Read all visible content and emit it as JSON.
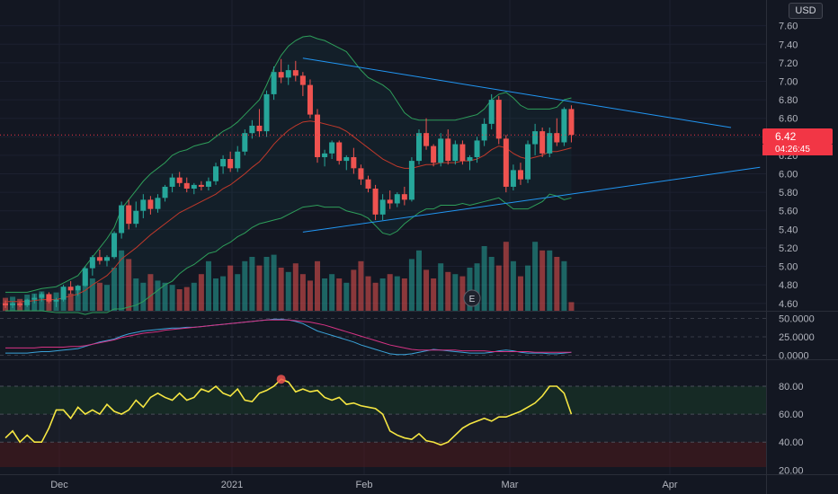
{
  "currency": "USD",
  "colors": {
    "background": "#131722",
    "bull": "#26a69a",
    "bear": "#ef5350",
    "bollinger": "#2e9e5a",
    "basis": "#c0392b",
    "trendline": "#2196f3",
    "rsi": "#f5e642",
    "macd": "#3aa3d9",
    "signal": "#d63384",
    "price_line": "#f23645"
  },
  "last_price": {
    "value": "6.42",
    "countdown": "04:26:45"
  },
  "earnings_marker": "E",
  "chart_data": [
    {
      "type": "candlestick",
      "price_axis": {
        "ticks": [
          "7.60",
          "7.40",
          "7.20",
          "7.00",
          "6.80",
          "6.60",
          "6.40",
          "6.20",
          "6.00",
          "5.80",
          "5.60",
          "5.40",
          "5.20",
          "5.00",
          "4.80",
          "4.60"
        ],
        "ylim": [
          4.52,
          7.82
        ]
      },
      "time_axis": {
        "labels": [
          "Dec",
          "2021",
          "Feb",
          "Mar",
          "Apr"
        ]
      },
      "ohlc": [
        [
          4.6,
          4.63,
          4.55,
          4.58
        ],
        [
          4.58,
          4.62,
          4.55,
          4.6
        ],
        [
          4.6,
          4.62,
          4.56,
          4.58
        ],
        [
          4.58,
          4.65,
          4.56,
          4.64
        ],
        [
          4.64,
          4.7,
          4.6,
          4.66
        ],
        [
          4.66,
          4.72,
          4.62,
          4.7
        ],
        [
          4.7,
          4.72,
          4.6,
          4.62
        ],
        [
          4.62,
          4.66,
          4.56,
          4.64
        ],
        [
          4.64,
          4.8,
          4.62,
          4.78
        ],
        [
          4.78,
          4.84,
          4.7,
          4.74
        ],
        [
          4.74,
          4.8,
          4.68,
          4.79
        ],
        [
          4.79,
          5.0,
          4.78,
          4.98
        ],
        [
          4.98,
          5.12,
          4.9,
          5.1
        ],
        [
          5.1,
          5.18,
          5.02,
          5.06
        ],
        [
          5.06,
          5.12,
          5.0,
          5.1
        ],
        [
          5.1,
          5.38,
          5.08,
          5.36
        ],
        [
          5.36,
          5.7,
          5.3,
          5.66
        ],
        [
          5.66,
          5.72,
          5.4,
          5.46
        ],
        [
          5.46,
          5.7,
          5.42,
          5.6
        ],
        [
          5.6,
          5.78,
          5.52,
          5.72
        ],
        [
          5.72,
          5.76,
          5.56,
          5.62
        ],
        [
          5.62,
          5.78,
          5.58,
          5.74
        ],
        [
          5.74,
          5.88,
          5.7,
          5.86
        ],
        [
          5.86,
          6.0,
          5.8,
          5.96
        ],
        [
          5.96,
          6.02,
          5.86,
          5.9
        ],
        [
          5.9,
          5.96,
          5.8,
          5.84
        ],
        [
          5.84,
          5.9,
          5.78,
          5.88
        ],
        [
          5.88,
          5.92,
          5.82,
          5.86
        ],
        [
          5.86,
          5.96,
          5.82,
          5.92
        ],
        [
          5.92,
          6.12,
          5.88,
          6.08
        ],
        [
          6.08,
          6.2,
          6.0,
          6.16
        ],
        [
          6.16,
          6.24,
          6.02,
          6.06
        ],
        [
          6.06,
          6.3,
          6.02,
          6.24
        ],
        [
          6.24,
          6.48,
          6.2,
          6.44
        ],
        [
          6.44,
          6.58,
          6.38,
          6.52
        ],
        [
          6.52,
          6.7,
          6.4,
          6.46
        ],
        [
          6.46,
          6.9,
          6.4,
          6.86
        ],
        [
          6.86,
          7.16,
          6.8,
          7.1
        ],
        [
          7.1,
          7.24,
          6.98,
          7.04
        ],
        [
          7.04,
          7.18,
          6.96,
          7.12
        ],
        [
          7.12,
          7.22,
          7.0,
          7.06
        ],
        [
          7.06,
          7.1,
          6.84,
          6.96
        ],
        [
          6.96,
          7.02,
          6.6,
          6.64
        ],
        [
          6.64,
          6.7,
          6.12,
          6.18
        ],
        [
          6.18,
          6.26,
          6.08,
          6.22
        ],
        [
          6.22,
          6.36,
          6.16,
          6.34
        ],
        [
          6.34,
          6.36,
          6.1,
          6.14
        ],
        [
          6.14,
          6.2,
          6.04,
          6.18
        ],
        [
          6.18,
          6.28,
          6.0,
          6.06
        ],
        [
          6.06,
          6.1,
          5.88,
          5.94
        ],
        [
          5.94,
          5.98,
          5.8,
          5.84
        ],
        [
          5.84,
          5.88,
          5.5,
          5.56
        ],
        [
          5.56,
          5.78,
          5.5,
          5.72
        ],
        [
          5.72,
          5.82,
          5.62,
          5.68
        ],
        [
          5.68,
          5.8,
          5.64,
          5.78
        ],
        [
          5.78,
          5.86,
          5.66,
          5.72
        ],
        [
          5.72,
          6.18,
          5.7,
          6.14
        ],
        [
          6.14,
          6.48,
          6.1,
          6.44
        ],
        [
          6.44,
          6.6,
          6.26,
          6.3
        ],
        [
          6.3,
          6.32,
          6.08,
          6.12
        ],
        [
          6.12,
          6.44,
          6.08,
          6.38
        ],
        [
          6.38,
          6.48,
          6.1,
          6.14
        ],
        [
          6.14,
          6.36,
          6.1,
          6.32
        ],
        [
          6.32,
          6.36,
          6.1,
          6.14
        ],
        [
          6.14,
          6.2,
          6.04,
          6.18
        ],
        [
          6.18,
          6.4,
          6.12,
          6.36
        ],
        [
          6.36,
          6.6,
          6.3,
          6.54
        ],
        [
          6.54,
          6.86,
          6.48,
          6.8
        ],
        [
          6.8,
          6.84,
          6.32,
          6.38
        ],
        [
          6.38,
          6.42,
          5.8,
          5.86
        ],
        [
          5.86,
          6.1,
          5.82,
          6.04
        ],
        [
          6.04,
          6.12,
          5.88,
          5.94
        ],
        [
          5.94,
          6.36,
          5.9,
          6.32
        ],
        [
          6.32,
          6.54,
          6.2,
          6.46
        ],
        [
          6.46,
          6.5,
          6.18,
          6.22
        ],
        [
          6.22,
          6.5,
          6.18,
          6.44
        ],
        [
          6.44,
          6.6,
          6.3,
          6.34
        ],
        [
          6.34,
          6.72,
          6.3,
          6.7
        ],
        [
          6.7,
          6.74,
          6.34,
          6.42
        ]
      ],
      "volume": [
        1.2,
        1.3,
        1.1,
        1.5,
        1.6,
        1.8,
        1.4,
        1.7,
        2.0,
        1.6,
        1.9,
        3.6,
        3.0,
        2.6,
        2.4,
        4.0,
        5.6,
        4.8,
        3.0,
        2.6,
        3.4,
        2.8,
        2.6,
        2.4,
        2.0,
        2.2,
        2.6,
        3.4,
        4.6,
        3.0,
        3.2,
        4.2,
        3.4,
        4.6,
        5.0,
        4.2,
        5.0,
        5.2,
        4.0,
        3.6,
        4.4,
        3.4,
        2.8,
        4.6,
        3.0,
        3.4,
        3.0,
        2.6,
        3.8,
        4.6,
        3.2,
        2.6,
        3.0,
        3.4,
        3.2,
        3.0,
        4.8,
        5.6,
        3.8,
        3.0,
        4.4,
        3.6,
        3.4,
        3.2,
        4.0,
        4.4,
        6.0,
        5.0,
        4.2,
        6.4,
        4.6,
        3.2,
        4.2,
        6.4,
        5.6,
        5.6,
        5.0,
        4.6,
        0.8
      ],
      "bollinger": {
        "upper": [
          4.72,
          4.72,
          4.72,
          4.72,
          4.74,
          4.76,
          4.77,
          4.78,
          4.82,
          4.86,
          4.9,
          5.0,
          5.1,
          5.2,
          5.3,
          5.42,
          5.62,
          5.72,
          5.82,
          5.92,
          6.0,
          6.06,
          6.12,
          6.2,
          6.24,
          6.26,
          6.3,
          6.32,
          6.34,
          6.4,
          6.46,
          6.5,
          6.56,
          6.64,
          6.72,
          6.8,
          6.96,
          7.14,
          7.28,
          7.38,
          7.44,
          7.48,
          7.49,
          7.46,
          7.44,
          7.4,
          7.36,
          7.32,
          7.22,
          7.12,
          7.04,
          7.0,
          6.96,
          6.9,
          6.78,
          6.66,
          6.6,
          6.58,
          6.58,
          6.58,
          6.58,
          6.58,
          6.58,
          6.6,
          6.62,
          6.64,
          6.7,
          6.8,
          6.86,
          6.88,
          6.82,
          6.74,
          6.7,
          6.7,
          6.7,
          6.7,
          6.72,
          6.8,
          6.82
        ],
        "basis": [
          4.62,
          4.62,
          4.62,
          4.62,
          4.63,
          4.64,
          4.64,
          4.64,
          4.66,
          4.68,
          4.7,
          4.74,
          4.8,
          4.85,
          4.9,
          4.98,
          5.08,
          5.14,
          5.2,
          5.27,
          5.34,
          5.4,
          5.46,
          5.52,
          5.58,
          5.62,
          5.66,
          5.7,
          5.74,
          5.78,
          5.84,
          5.88,
          5.94,
          6.0,
          6.07,
          6.13,
          6.22,
          6.32,
          6.4,
          6.47,
          6.52,
          6.56,
          6.57,
          6.56,
          6.54,
          6.52,
          6.5,
          6.46,
          6.4,
          6.34,
          6.28,
          6.22,
          6.16,
          6.12,
          6.08,
          6.06,
          6.06,
          6.08,
          6.1,
          6.1,
          6.12,
          6.12,
          6.12,
          6.14,
          6.14,
          6.16,
          6.2,
          6.26,
          6.3,
          6.28,
          6.22,
          6.18,
          6.16,
          6.18,
          6.2,
          6.24,
          6.24,
          6.26,
          6.28
        ],
        "lower": [
          4.52,
          4.52,
          4.52,
          4.52,
          4.52,
          4.52,
          4.51,
          4.5,
          4.5,
          4.5,
          4.5,
          4.48,
          4.5,
          4.5,
          4.5,
          4.54,
          4.54,
          4.56,
          4.58,
          4.62,
          4.68,
          4.74,
          4.8,
          4.84,
          4.92,
          4.98,
          5.02,
          5.08,
          5.14,
          5.16,
          5.22,
          5.26,
          5.32,
          5.36,
          5.42,
          5.46,
          5.48,
          5.5,
          5.52,
          5.56,
          5.6,
          5.64,
          5.65,
          5.66,
          5.64,
          5.64,
          5.64,
          5.6,
          5.58,
          5.56,
          5.52,
          5.44,
          5.36,
          5.34,
          5.38,
          5.46,
          5.52,
          5.58,
          5.62,
          5.62,
          5.66,
          5.66,
          5.66,
          5.68,
          5.66,
          5.68,
          5.7,
          5.72,
          5.74,
          5.68,
          5.62,
          5.62,
          5.62,
          5.66,
          5.7,
          5.78,
          5.76,
          5.72,
          5.74
        ]
      },
      "trendlines": [
        {
          "from": [
            41,
            7.25
          ],
          "to": [
            100,
            6.5
          ]
        },
        {
          "from": [
            41,
            5.37
          ],
          "to": [
            104,
            6.07
          ]
        }
      ]
    },
    {
      "type": "line",
      "panel": "indicator",
      "y_ticks": [
        "50.0000",
        "25.0000",
        "0.0000"
      ],
      "ylim": [
        -3,
        58
      ],
      "series": [
        {
          "values": [
            3,
            3,
            3,
            3,
            4,
            5,
            5,
            6,
            7,
            8,
            9,
            12,
            15,
            18,
            20,
            22,
            26,
            29,
            31,
            33,
            34,
            35,
            36,
            37,
            37,
            38,
            38,
            39,
            40,
            41,
            42,
            43,
            44,
            45,
            46,
            47,
            48,
            49,
            49,
            48,
            46,
            43,
            38,
            33,
            30,
            27,
            24,
            21,
            18,
            14,
            11,
            8,
            5,
            2,
            1,
            1,
            2,
            4,
            6,
            8,
            7,
            6,
            5,
            4,
            3,
            3,
            3,
            4,
            6,
            7,
            6,
            4,
            3,
            3,
            3,
            2,
            2,
            3,
            4
          ]
        },
        {
          "values": [
            10,
            10,
            10,
            10,
            10,
            11,
            11,
            11,
            11,
            12,
            12,
            13,
            15,
            17,
            19,
            21,
            24,
            26,
            28,
            30,
            31,
            32,
            34,
            35,
            36,
            37,
            38,
            39,
            40,
            41,
            42,
            43,
            44,
            45,
            46,
            47,
            48,
            48,
            48,
            48,
            47,
            46,
            45,
            43,
            41,
            38,
            35,
            32,
            29,
            26,
            23,
            20,
            17,
            14,
            12,
            10,
            8,
            7,
            7,
            7,
            7,
            7,
            7,
            6,
            6,
            6,
            6,
            5,
            5,
            5,
            5,
            5,
            5,
            4,
            4,
            4,
            4,
            4,
            4
          ]
        }
      ]
    },
    {
      "type": "line",
      "panel": "oscillator",
      "y_ticks": [
        "80.00",
        "60.00",
        "40.00",
        "20.00"
      ],
      "ylim": [
        17,
        98
      ],
      "bands": {
        "upper": 80,
        "middle": 60,
        "lower": 40
      },
      "series": [
        {
          "values": [
            43,
            48,
            40,
            45,
            40,
            40,
            50,
            63,
            63,
            57,
            65,
            60,
            63,
            60,
            67,
            62,
            60,
            63,
            70,
            65,
            72,
            75,
            72,
            70,
            75,
            70,
            72,
            78,
            76,
            80,
            75,
            73,
            78,
            70,
            69,
            75,
            77,
            80,
            85,
            83,
            76,
            78,
            76,
            77,
            72,
            70,
            72,
            67,
            68,
            66,
            65,
            64,
            60,
            48,
            45,
            43,
            42,
            46,
            41,
            40,
            38,
            40,
            45,
            50,
            53,
            55,
            57,
            55,
            58,
            58,
            60,
            62,
            65,
            68,
            73,
            80,
            80,
            75,
            60
          ]
        }
      ]
    }
  ]
}
